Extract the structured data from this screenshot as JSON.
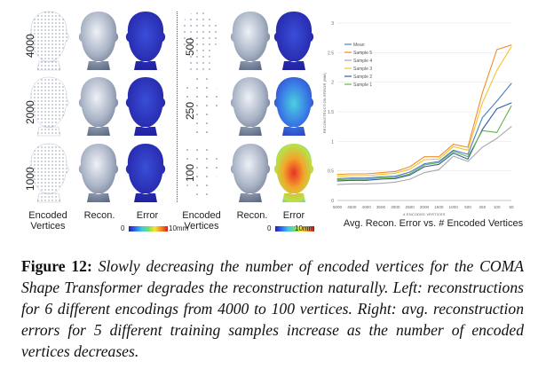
{
  "left_panel": {
    "row_labels_left": [
      "4000",
      "2000",
      "1000"
    ],
    "row_labels_right": [
      "500",
      "250",
      "100"
    ],
    "column_labels": [
      "Encoded\nVertices",
      "Recon.",
      "Error",
      "Encoded\nVertices",
      "Recon.",
      "Error"
    ],
    "colorbar_min": "0",
    "colorbar_max": "10mm"
  },
  "chart_data": {
    "type": "line",
    "title": "Avg. Recon. Error vs. # Encoded Vertices",
    "xlabel": "# ENCODED VERTICES",
    "ylabel": "RECONSTRUCTION ERROR (MM)",
    "categories": [
      "5000",
      "4500",
      "4000",
      "3500",
      "3000",
      "2500",
      "2000",
      "1500",
      "1000",
      "500",
      "250",
      "100",
      "50"
    ],
    "ylim": [
      0,
      3
    ],
    "yticks": [
      "0",
      "0.5",
      "1",
      "1.5",
      "2",
      "2.5",
      "3"
    ],
    "legend_position": "top-left",
    "series": [
      {
        "name": "Mean",
        "color": "#4a7fc1",
        "values": [
          0.37,
          0.38,
          0.38,
          0.4,
          0.41,
          0.48,
          0.62,
          0.66,
          0.85,
          0.78,
          1.4,
          1.68,
          1.98
        ]
      },
      {
        "name": "Sample 5",
        "color": "#f28c28",
        "values": [
          0.44,
          0.45,
          0.45,
          0.47,
          0.49,
          0.57,
          0.74,
          0.74,
          0.95,
          0.9,
          1.82,
          2.55,
          2.63
        ]
      },
      {
        "name": "Sample 4",
        "color": "#a8a8a8",
        "values": [
          0.27,
          0.28,
          0.28,
          0.29,
          0.31,
          0.36,
          0.47,
          0.52,
          0.75,
          0.66,
          0.9,
          1.05,
          1.25
        ]
      },
      {
        "name": "Sample 3",
        "color": "#f6c22e",
        "values": [
          0.41,
          0.42,
          0.42,
          0.44,
          0.46,
          0.53,
          0.69,
          0.7,
          0.91,
          0.85,
          1.65,
          2.2,
          2.6
        ]
      },
      {
        "name": "Sample 2",
        "color": "#2f5da8",
        "values": [
          0.33,
          0.34,
          0.34,
          0.36,
          0.37,
          0.43,
          0.57,
          0.61,
          0.8,
          0.7,
          1.2,
          1.55,
          1.65
        ]
      },
      {
        "name": "Sample 1",
        "color": "#6ab04c",
        "values": [
          0.35,
          0.36,
          0.36,
          0.38,
          0.39,
          0.45,
          0.6,
          0.64,
          0.83,
          0.74,
          1.18,
          1.15,
          1.6
        ]
      }
    ]
  },
  "chart_footer": "Avg. Recon. Error vs. # Encoded Vertices",
  "caption": {
    "label": "Figure 12:",
    "text": "Slowly decreasing the number of encoded vertices for the COMA Shape Transformer degrades the reconstruction naturally. Left: reconstructions for 6 different encodings from 4000 to 100 vertices. Right: avg. reconstruction errors for 5 different training samples increase as the number of encoded vertices decreases."
  }
}
